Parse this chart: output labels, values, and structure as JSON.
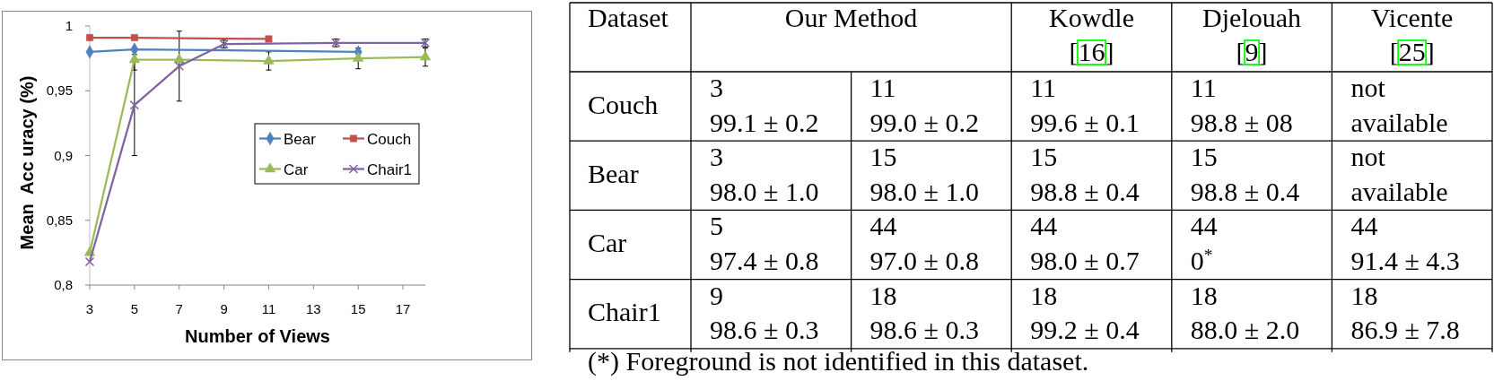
{
  "chart_data": [
    {
      "type": "line",
      "xlabel": "Number of Views",
      "ylabel": "Mean  Acc uracy (%)",
      "xlim": [
        3,
        18
      ],
      "ylim": [
        0.8,
        1
      ],
      "xticks": [
        3,
        5,
        7,
        9,
        11,
        13,
        15,
        17
      ],
      "yticks": [
        {
          "value": 0.8,
          "label": "0,8"
        },
        {
          "value": 0.85,
          "label": "0,85"
        },
        {
          "value": 0.9,
          "label": "0,9"
        },
        {
          "value": 0.95,
          "label": "0,95"
        },
        1
      ],
      "legend": "right",
      "series": [
        {
          "name": "Bear",
          "color": "#4f81bd",
          "marker": "diamond",
          "x": [
            3,
            5,
            15
          ],
          "values": [
            0.98,
            0.982,
            0.98
          ]
        },
        {
          "name": "Couch",
          "color": "#c0504d",
          "marker": "square",
          "x": [
            3,
            5,
            11
          ],
          "values": [
            0.991,
            0.991,
            0.99
          ]
        },
        {
          "name": "Car",
          "color": "#9bbb59",
          "marker": "triangle",
          "x": [
            3,
            5,
            7,
            11,
            15,
            18
          ],
          "values": [
            0.825,
            0.974,
            0.974,
            0.973,
            0.975,
            0.976
          ],
          "errors": [
            null,
            0.008,
            null,
            0.007,
            0.008,
            0.007
          ]
        },
        {
          "name": "Chair1",
          "color": "#8064a2",
          "marker": "cross",
          "x": [
            3,
            5,
            7,
            9,
            14,
            18
          ],
          "values": [
            0.818,
            0.939,
            0.969,
            0.986,
            0.987,
            0.987
          ],
          "errors": [
            null,
            0.039,
            0.027,
            0.003,
            0.003,
            0.003
          ]
        }
      ]
    },
    {
      "type": "other",
      "ylabel": "Dataset",
      "categories": [
        "Our Method",
        null,
        "Kowdle\n[16]",
        "Djelouah\n[9]",
        "Vicente\n[25]"
      ],
      "y_categories": [
        "Couch",
        "Bear",
        "Car",
        "Chair1"
      ],
      "cell_labels": [
        [
          "3\n99.1 ± 0.2",
          "11\n99.0 ± 0.2",
          "11\n99.6 ± 0.1",
          "11\n98.8 ± 08",
          "not\navailable"
        ],
        [
          "3\n98.0 ± 1.0",
          "15\n98.0 ± 1.0",
          "15\n98.8 ± 0.4",
          "15\n98.8 ± 0.4",
          "not\navailable"
        ],
        [
          "5\n97.4 ± 0.8",
          "44\n97.0 ± 0.8",
          "44\n98.0 ± 0.7",
          "44\n0$^{*}$",
          "44\n91.4 ± 4.3"
        ],
        [
          "9\n98.6 ± 0.3",
          "18\n98.6 ± 0.3",
          "18\n99.2 ± 0.4",
          "18\n88.0 ± 2.0",
          "18\n86.9 ± 7.8"
        ]
      ],
      "annotations": [
        "(*) Foreground is not identified in this dataset."
      ]
    }
  ]
}
